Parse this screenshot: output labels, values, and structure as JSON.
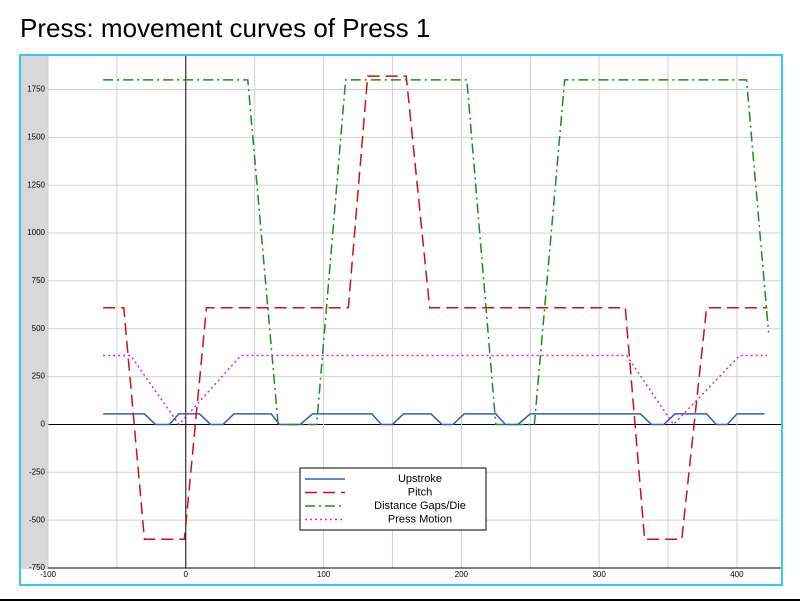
{
  "chart_data": {
    "type": "line",
    "title": "Press: movement curves of Press 1",
    "xlim": [
      -100,
      432
    ],
    "ylim": [
      -750,
      1925
    ],
    "xticks": [
      -100,
      0,
      100,
      200,
      300,
      400
    ],
    "xminor": [
      -50,
      50,
      150,
      250,
      350
    ],
    "yticks": [
      -750,
      -500,
      -250,
      0,
      250,
      500,
      750,
      1000,
      1250,
      1500,
      1750
    ],
    "grid": true,
    "legend": "bottom-center",
    "series": [
      {
        "name": "Upstroke",
        "color": "#2f5fbf",
        "dash": "none",
        "x": [
          -60,
          -30,
          -22,
          -12,
          -5,
          10,
          18,
          27,
          35,
          62,
          68,
          83,
          92,
          135,
          142,
          150,
          158,
          178,
          186,
          194,
          202,
          225,
          232,
          241,
          250,
          330,
          338,
          347,
          355,
          378,
          385,
          393,
          400,
          420
        ],
        "values": [
          55,
          55,
          0,
          0,
          55,
          55,
          0,
          0,
          55,
          55,
          0,
          0,
          55,
          55,
          0,
          0,
          55,
          55,
          0,
          0,
          55,
          55,
          0,
          0,
          55,
          55,
          0,
          0,
          55,
          55,
          0,
          0,
          55,
          55
        ]
      },
      {
        "name": "Pitch",
        "color": "#cc1111",
        "dash": "12,6",
        "x": [
          -60,
          -45,
          -30,
          -1,
          15,
          118,
          132,
          160,
          177,
          319,
          333,
          360,
          378,
          422
        ],
        "values": [
          610,
          610,
          -600,
          -600,
          610,
          610,
          1820,
          1820,
          610,
          610,
          -600,
          -600,
          610,
          610
        ]
      },
      {
        "name": "Distance Gaps/Die",
        "color": "#228822",
        "dash": "10,4,2,4",
        "x": [
          -60,
          45,
          67,
          95,
          116,
          204,
          225,
          253,
          275,
          407,
          423
        ],
        "values": [
          1800,
          1800,
          0,
          0,
          1800,
          1800,
          0,
          0,
          1800,
          1800,
          480
        ]
      },
      {
        "name": "Press Motion",
        "color": "#dd22dd",
        "dash": "2,3",
        "x": [
          -60,
          -40,
          -5,
          40,
          320,
          354,
          402,
          422
        ],
        "values": [
          360,
          360,
          0,
          360,
          360,
          0,
          360,
          360
        ]
      }
    ]
  }
}
